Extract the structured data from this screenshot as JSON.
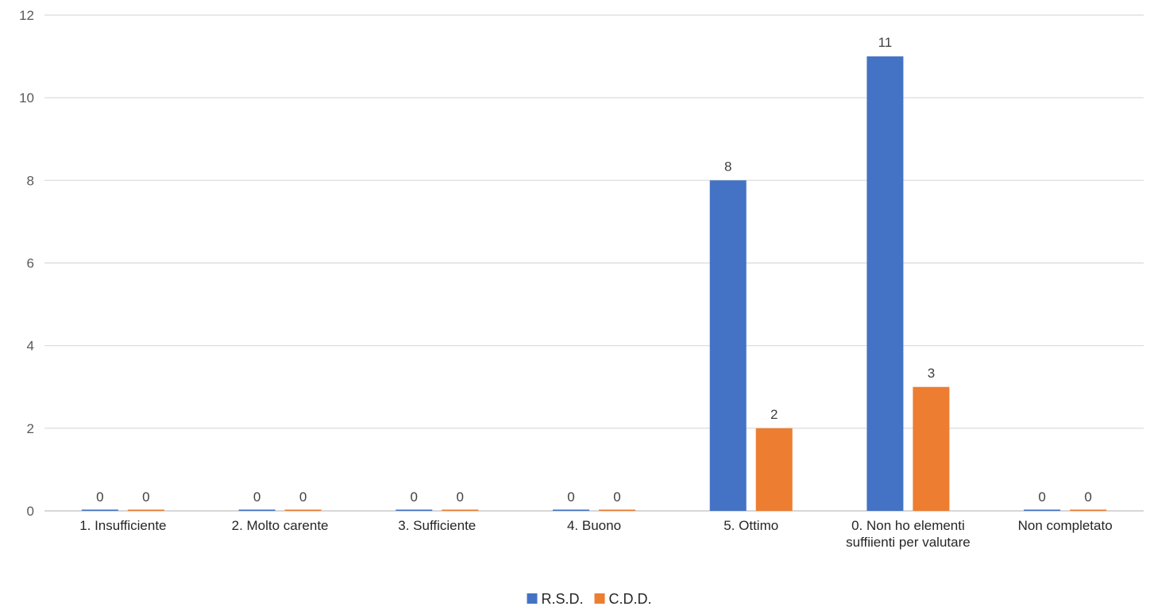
{
  "chart_data": {
    "type": "bar",
    "title": "",
    "xlabel": "",
    "ylabel": "",
    "categories": [
      [
        "1. Insufficiente"
      ],
      [
        "2. Molto carente"
      ],
      [
        "3. Sufficiente"
      ],
      [
        "4. Buono"
      ],
      [
        "5. Ottimo"
      ],
      [
        "0. Non ho elementi",
        "suffiienti per valutare"
      ],
      [
        "Non completato"
      ]
    ],
    "series": [
      {
        "name": "R.S.D.",
        "color": "#4472c4",
        "values": [
          0,
          0,
          0,
          0,
          8,
          11,
          0
        ]
      },
      {
        "name": "C.D.D.",
        "color": "#ed7d31",
        "values": [
          0,
          0,
          0,
          0,
          2,
          3,
          0
        ]
      }
    ],
    "ylim": [
      0,
      12
    ],
    "yticks": [
      0,
      2,
      4,
      6,
      8,
      10,
      12
    ],
    "grid": true,
    "data_labels": true,
    "legend_position": "bottom"
  }
}
